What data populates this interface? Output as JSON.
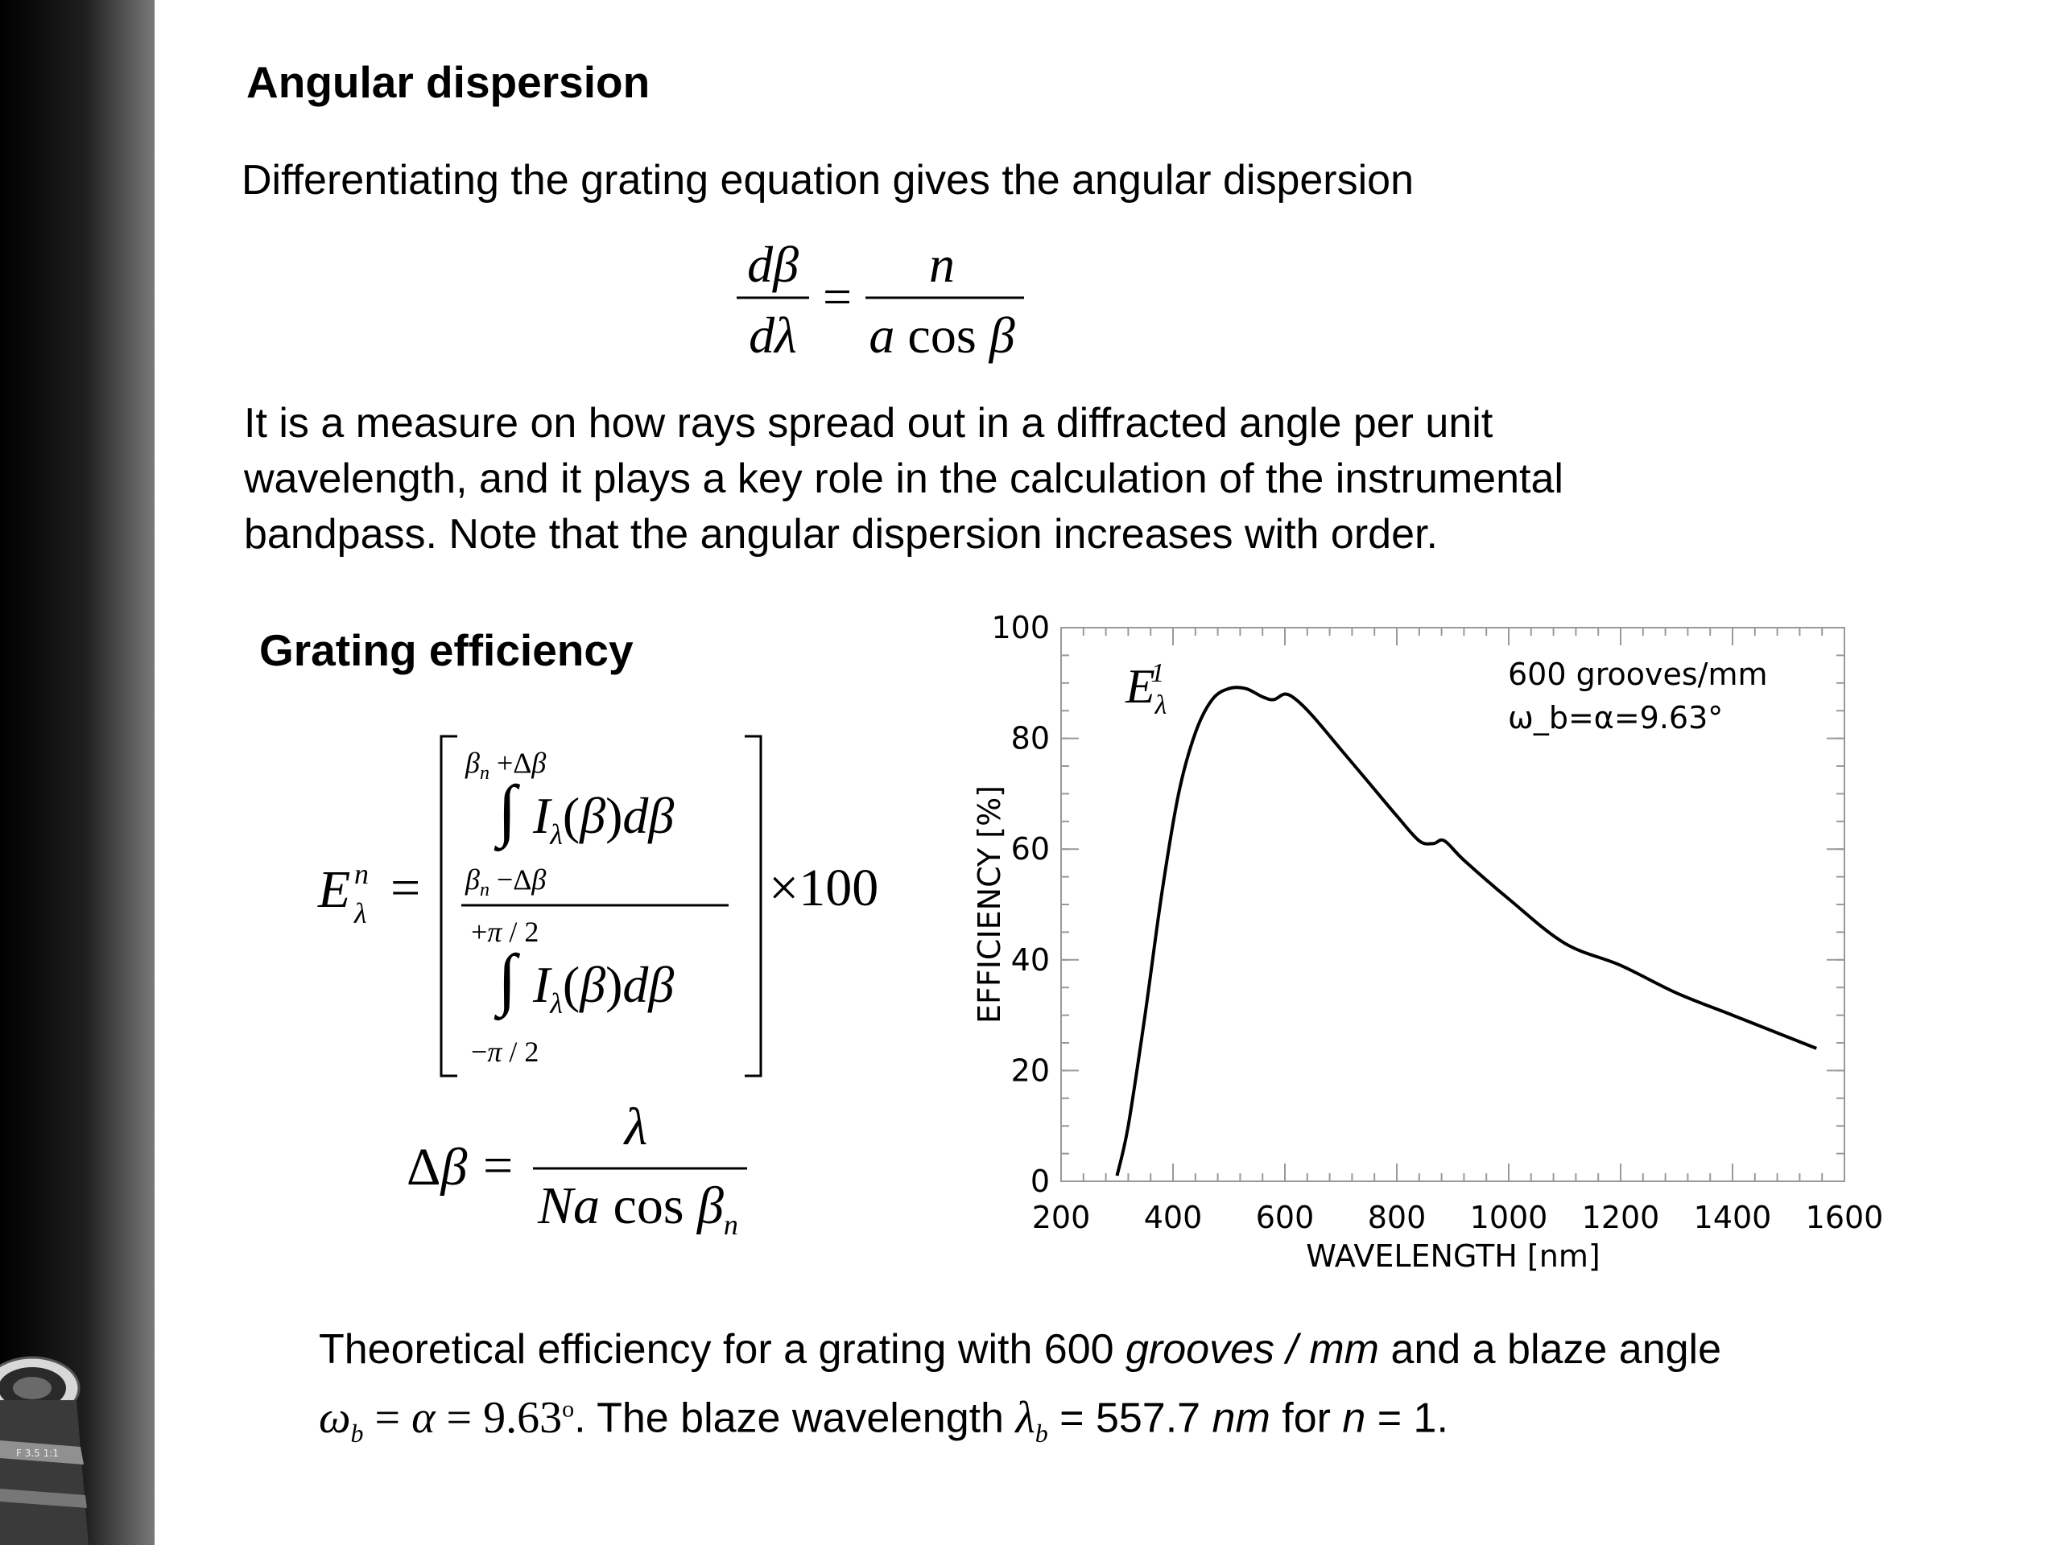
{
  "sections": {
    "angular": {
      "heading": "Angular dispersion",
      "intro": "Differentiating the grating equation gives the angular dispersion",
      "body_lines": [
        "It is a measure on how rays spread out in a diffracted angle per unit",
        "wavelength, and it plays a key role in the calculation of the instrumental",
        "bandpass. Note that the angular dispersion increases with order."
      ]
    },
    "efficiency": {
      "heading": "Grating efficiency"
    }
  },
  "caption": {
    "line1_a": "Theoretical efficiency for a grating with 600 ",
    "line1_b": "grooves / mm",
    "line1_c": " and a blaze angle",
    "line2_a": ". The blaze wavelength ",
    "line2_b": " = 557.7 ",
    "line2_c": "nm",
    "line2_d": " for ",
    "line2_e": "n",
    "line2_f": " = 1."
  },
  "chart_data": {
    "type": "line",
    "xlabel": "WAVELENGTH [nm]",
    "ylabel": "EFFICIENCY [%]",
    "xlim": [
      200,
      1600
    ],
    "ylim": [
      0,
      100
    ],
    "xticks": [
      200,
      400,
      600,
      800,
      1000,
      1200,
      1400,
      1600
    ],
    "yticks": [
      0,
      20,
      40,
      60,
      80,
      100
    ],
    "annotations": [
      "600 grooves/mm",
      "ω_b=α=9.63°"
    ],
    "series": [
      {
        "x": [
          300,
          320,
          350,
          380,
          410,
          440,
          470,
          500,
          530,
          560,
          580,
          600,
          620,
          650,
          700,
          750,
          800,
          840,
          865,
          885,
          920,
          1000,
          1100,
          1200,
          1300,
          1400,
          1500,
          1550
        ],
        "y": [
          1,
          10,
          30,
          52,
          70,
          81,
          87,
          89,
          89,
          87.5,
          87,
          88,
          87,
          84,
          78,
          72,
          66,
          61.5,
          61,
          61.5,
          58,
          51,
          43,
          39,
          34,
          30,
          26,
          24
        ]
      }
    ]
  }
}
